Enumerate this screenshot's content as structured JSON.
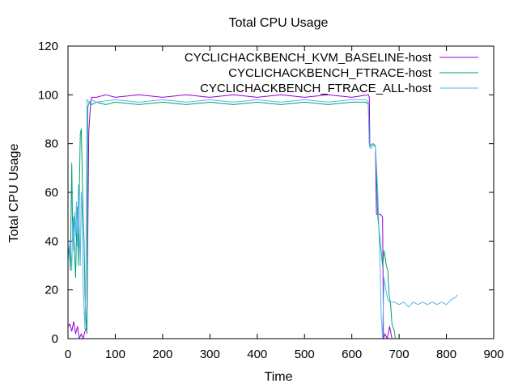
{
  "chart_data": {
    "type": "line",
    "title": "Total CPU Usage",
    "xlabel": "Time",
    "ylabel": "Total CPU Usage",
    "xlim": [
      0,
      900
    ],
    "ylim": [
      0,
      120
    ],
    "xticks": [
      0,
      100,
      200,
      300,
      400,
      500,
      600,
      700,
      800,
      900
    ],
    "yticks": [
      0,
      20,
      40,
      60,
      80,
      100,
      120
    ],
    "grid": false,
    "legend_position": "top-right",
    "series": [
      {
        "name": "CYCLICHACKBENCH_KVM_BASELINE-host",
        "color": "#9400d3",
        "points": [
          [
            0,
            5
          ],
          [
            4,
            6
          ],
          [
            8,
            3
          ],
          [
            12,
            7
          ],
          [
            16,
            2
          ],
          [
            20,
            5
          ],
          [
            24,
            0
          ],
          [
            28,
            2
          ],
          [
            32,
            0
          ],
          [
            36,
            3
          ],
          [
            40,
            5
          ],
          [
            44,
            85
          ],
          [
            48,
            97
          ],
          [
            50,
            99
          ],
          [
            60,
            99
          ],
          [
            80,
            100
          ],
          [
            100,
            99
          ],
          [
            150,
            100
          ],
          [
            200,
            99
          ],
          [
            250,
            100
          ],
          [
            300,
            99
          ],
          [
            350,
            100
          ],
          [
            400,
            99
          ],
          [
            450,
            100
          ],
          [
            500,
            99
          ],
          [
            550,
            100
          ],
          [
            600,
            99
          ],
          [
            635,
            100
          ],
          [
            637,
            99
          ],
          [
            638,
            80
          ],
          [
            640,
            79
          ],
          [
            645,
            80
          ],
          [
            650,
            79
          ],
          [
            652,
            51
          ],
          [
            660,
            51
          ],
          [
            665,
            50
          ],
          [
            667,
            0
          ],
          [
            670,
            2
          ],
          [
            675,
            0
          ],
          [
            680,
            5
          ],
          [
            685,
            0
          ]
        ]
      },
      {
        "name": "CYCLICHACKBENCH_FTRACE-host",
        "color": "#009e73",
        "points": [
          [
            0,
            35
          ],
          [
            3,
            38
          ],
          [
            5,
            28
          ],
          [
            8,
            72
          ],
          [
            10,
            40
          ],
          [
            12,
            50
          ],
          [
            14,
            35
          ],
          [
            16,
            25
          ],
          [
            18,
            42
          ],
          [
            20,
            54
          ],
          [
            22,
            30
          ],
          [
            24,
            60
          ],
          [
            26,
            84
          ],
          [
            28,
            86
          ],
          [
            30,
            70
          ],
          [
            32,
            50
          ],
          [
            34,
            40
          ],
          [
            36,
            18
          ],
          [
            38,
            8
          ],
          [
            40,
            2
          ],
          [
            42,
            95
          ],
          [
            45,
            97
          ],
          [
            50,
            96
          ],
          [
            60,
            97
          ],
          [
            80,
            96
          ],
          [
            100,
            97
          ],
          [
            150,
            96
          ],
          [
            200,
            97
          ],
          [
            250,
            96
          ],
          [
            300,
            97
          ],
          [
            350,
            96
          ],
          [
            400,
            97
          ],
          [
            450,
            96
          ],
          [
            500,
            97
          ],
          [
            550,
            96
          ],
          [
            600,
            97
          ],
          [
            630,
            97
          ],
          [
            635,
            96
          ],
          [
            637,
            80
          ],
          [
            640,
            79
          ],
          [
            645,
            80
          ],
          [
            650,
            79
          ],
          [
            655,
            50
          ],
          [
            660,
            40
          ],
          [
            665,
            30
          ],
          [
            668,
            36
          ],
          [
            670,
            34
          ],
          [
            673,
            30
          ],
          [
            676,
            28
          ],
          [
            679,
            18
          ],
          [
            682,
            14
          ],
          [
            685,
            6
          ],
          [
            690,
            3
          ],
          [
            692,
            0
          ]
        ]
      },
      {
        "name": "CYCLICHACKBENCH_FTRACE_ALL-host",
        "color": "#56b4e9",
        "points": [
          [
            0,
            32
          ],
          [
            3,
            38
          ],
          [
            5,
            40
          ],
          [
            8,
            28
          ],
          [
            10,
            48
          ],
          [
            12,
            36
          ],
          [
            14,
            52
          ],
          [
            16,
            42
          ],
          [
            18,
            56
          ],
          [
            20,
            38
          ],
          [
            22,
            63
          ],
          [
            24,
            44
          ],
          [
            26,
            30
          ],
          [
            28,
            60
          ],
          [
            30,
            52
          ],
          [
            32,
            22
          ],
          [
            34,
            12
          ],
          [
            36,
            4
          ],
          [
            38,
            30
          ],
          [
            40,
            98
          ],
          [
            45,
            97
          ],
          [
            50,
            98
          ],
          [
            60,
            97
          ],
          [
            100,
            98
          ],
          [
            150,
            97
          ],
          [
            200,
            98
          ],
          [
            250,
            97
          ],
          [
            300,
            98
          ],
          [
            350,
            97
          ],
          [
            400,
            98
          ],
          [
            450,
            97
          ],
          [
            500,
            98
          ],
          [
            550,
            97
          ],
          [
            600,
            98
          ],
          [
            630,
            98
          ],
          [
            635,
            97
          ],
          [
            637,
            79
          ],
          [
            640,
            78
          ],
          [
            645,
            79
          ],
          [
            650,
            79
          ],
          [
            655,
            60
          ],
          [
            660,
            28
          ],
          [
            662,
            10
          ],
          [
            665,
            0
          ],
          [
            668,
            25
          ],
          [
            672,
            20
          ],
          [
            676,
            16
          ],
          [
            680,
            15
          ],
          [
            690,
            15
          ],
          [
            700,
            14
          ],
          [
            710,
            15
          ],
          [
            720,
            13
          ],
          [
            730,
            15
          ],
          [
            740,
            14
          ],
          [
            750,
            15
          ],
          [
            760,
            14
          ],
          [
            770,
            15
          ],
          [
            780,
            14
          ],
          [
            790,
            15
          ],
          [
            800,
            14
          ],
          [
            810,
            16
          ],
          [
            820,
            17
          ],
          [
            823,
            18
          ]
        ]
      }
    ]
  }
}
